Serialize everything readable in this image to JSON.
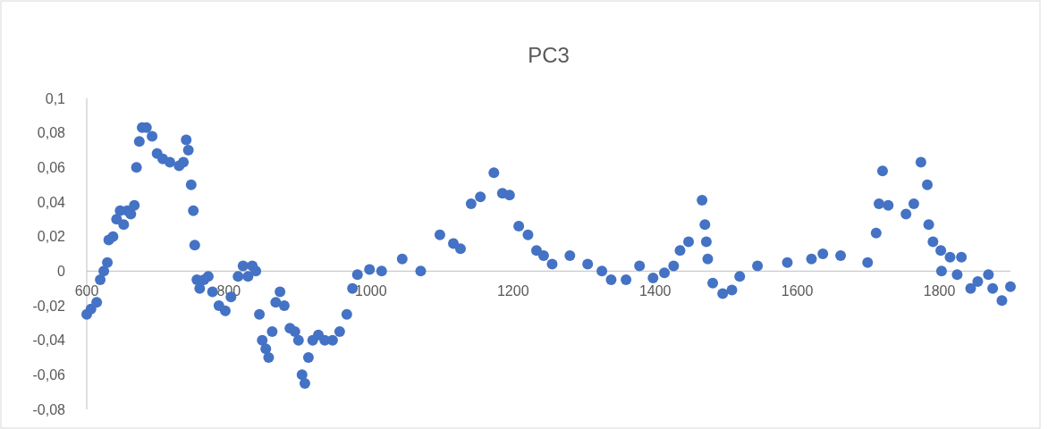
{
  "chart_data": {
    "type": "scatter",
    "title": "PC3",
    "marker": "circle",
    "grid": false,
    "xlim": [
      600,
      1900
    ],
    "xticks": [
      600,
      800,
      1000,
      1200,
      1400,
      1600,
      1800
    ],
    "ylim": [
      -0.08,
      0.1
    ],
    "yticks": [
      {
        "value": -0.08,
        "label": "-0,08"
      },
      {
        "value": -0.06,
        "label": "-0,06"
      },
      {
        "value": -0.04,
        "label": "-0,04"
      },
      {
        "value": -0.02,
        "label": "-0,02"
      },
      {
        "value": 0,
        "label": "0"
      },
      {
        "value": 0.02,
        "label": "0,02"
      },
      {
        "value": 0.04,
        "label": "0,04"
      },
      {
        "value": 0.06,
        "label": "0,06"
      },
      {
        "value": 0.08,
        "label": "0,08"
      },
      {
        "value": 0.1,
        "label": "0,1"
      }
    ],
    "series": [
      {
        "color": "#4472c4",
        "x": [
          600,
          606,
          614,
          619,
          624,
          629,
          631,
          637,
          642,
          647,
          652,
          657,
          662,
          667,
          670,
          674,
          678,
          684,
          692,
          699,
          707,
          717,
          730,
          736,
          740,
          743,
          747,
          750,
          752,
          755,
          759,
          765,
          771,
          777,
          786,
          795,
          803,
          813,
          820,
          827,
          833,
          838,
          843,
          847,
          852,
          856,
          861,
          866,
          872,
          878,
          886,
          893,
          898,
          903,
          907,
          912,
          918,
          926,
          935,
          946,
          956,
          966,
          974,
          981,
          998,
          1015,
          1044,
          1070,
          1097,
          1116,
          1126,
          1141,
          1154,
          1173,
          1185,
          1195,
          1208,
          1221,
          1233,
          1243,
          1255,
          1280,
          1305,
          1325,
          1338,
          1359,
          1378,
          1397,
          1413,
          1426,
          1435,
          1447,
          1466,
          1470,
          1472,
          1474,
          1481,
          1495,
          1508,
          1519,
          1544,
          1586,
          1620,
          1636,
          1661,
          1699,
          1711,
          1715,
          1720,
          1728,
          1753,
          1764,
          1774,
          1783,
          1785,
          1791,
          1802,
          1803,
          1815,
          1825,
          1831,
          1844,
          1854,
          1869,
          1875,
          1888,
          1900
        ],
        "values": [
          -0.025,
          -0.022,
          -0.018,
          -0.005,
          0.0,
          0.005,
          0.018,
          0.02,
          0.03,
          0.035,
          0.027,
          0.035,
          0.033,
          0.038,
          0.06,
          0.075,
          0.083,
          0.083,
          0.078,
          0.068,
          0.065,
          0.063,
          0.061,
          0.063,
          0.076,
          0.07,
          0.05,
          0.035,
          0.015,
          -0.005,
          -0.01,
          -0.005,
          -0.003,
          -0.012,
          -0.02,
          -0.023,
          -0.015,
          -0.003,
          0.003,
          -0.003,
          0.003,
          0.0,
          -0.025,
          -0.04,
          -0.045,
          -0.05,
          -0.035,
          -0.018,
          -0.012,
          -0.02,
          -0.033,
          -0.035,
          -0.04,
          -0.06,
          -0.065,
          -0.05,
          -0.04,
          -0.037,
          -0.04,
          -0.04,
          -0.035,
          -0.025,
          -0.01,
          -0.002,
          0.001,
          0.0,
          0.007,
          0.0,
          0.021,
          0.016,
          0.013,
          0.039,
          0.043,
          0.057,
          0.045,
          0.044,
          0.026,
          0.021,
          0.012,
          0.009,
          0.004,
          0.009,
          0.004,
          0.0,
          -0.005,
          -0.005,
          0.003,
          -0.004,
          -0.001,
          0.003,
          0.012,
          0.017,
          0.041,
          0.027,
          0.017,
          0.007,
          -0.007,
          -0.013,
          -0.011,
          -0.003,
          0.003,
          0.005,
          0.007,
          0.01,
          0.009,
          0.005,
          0.022,
          0.039,
          0.058,
          0.038,
          0.033,
          0.039,
          0.063,
          0.05,
          0.027,
          0.017,
          0.012,
          0.0,
          0.008,
          -0.002,
          0.008,
          -0.01,
          -0.006,
          -0.002,
          -0.01,
          -0.017,
          -0.009
        ]
      }
    ]
  }
}
